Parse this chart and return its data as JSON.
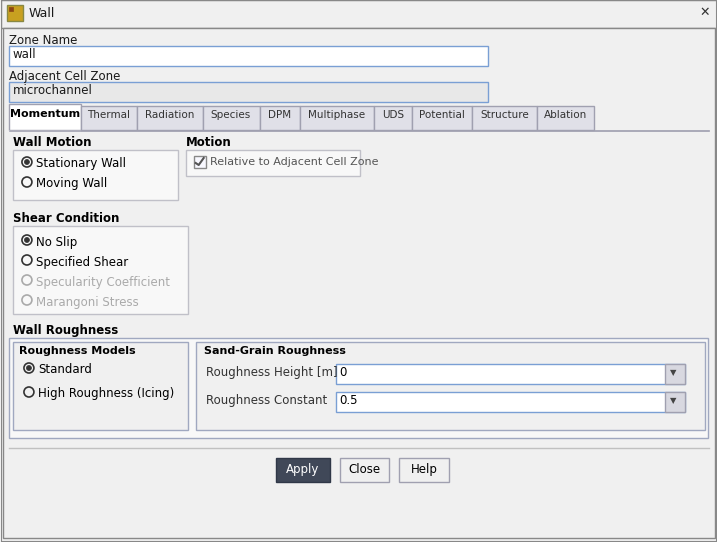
{
  "title": "Wall",
  "bg_color": "#f0f0f0",
  "dialog_bg": "#f0f0f0",
  "white": "#ffffff",
  "tabs": [
    "Momentum",
    "Thermal",
    "Radiation",
    "Species",
    "DPM",
    "Multiphase",
    "UDS",
    "Potential",
    "Structure",
    "Ablation"
  ],
  "active_tab": "Momentum",
  "zone_name_label": "Zone Name",
  "zone_name_value": "wall",
  "adjacent_label": "Adjacent Cell Zone",
  "adjacent_value": "microchannel",
  "wall_motion_label": "Wall Motion",
  "motion_label": "Motion",
  "radio_stationary": "Stationary Wall",
  "radio_moving": "Moving Wall",
  "checkbox_relative": "Relative to Adjacent Cell Zone",
  "shear_label": "Shear Condition",
  "shear_options": [
    "No Slip",
    "Specified Shear",
    "Specularity Coefficient",
    "Marangoni Stress"
  ],
  "shear_disabled": [
    "Specularity Coefficient",
    "Marangoni Stress"
  ],
  "wall_roughness_label": "Wall Roughness",
  "roughness_models_label": "Roughness Models",
  "sand_grain_label": "Sand-Grain Roughness",
  "roughness_model_options": [
    "Standard",
    "High Roughness (Icing)"
  ],
  "roughness_height_label": "Roughness Height [m]",
  "roughness_height_value": "0",
  "roughness_constant_label": "Roughness Constant",
  "roughness_constant_value": "0.5",
  "btn_apply": "Apply",
  "btn_close": "Close",
  "btn_help": "Help",
  "caption_color": "#2c2c2c",
  "disabled_color": "#aaaaaa",
  "tab_active_bg": "#ffffff",
  "tab_inactive_bg": "#e0e0e8",
  "border_color": "#a0a0b0",
  "btn_apply_bg": "#404858",
  "btn_apply_fg": "#ffffff",
  "btn_other_bg": "#f0f0f0",
  "section_bold_color": "#000000",
  "input_bg": "#ffffff",
  "input_gray_bg": "#e8e8e8",
  "icon_color": "#c8a020"
}
